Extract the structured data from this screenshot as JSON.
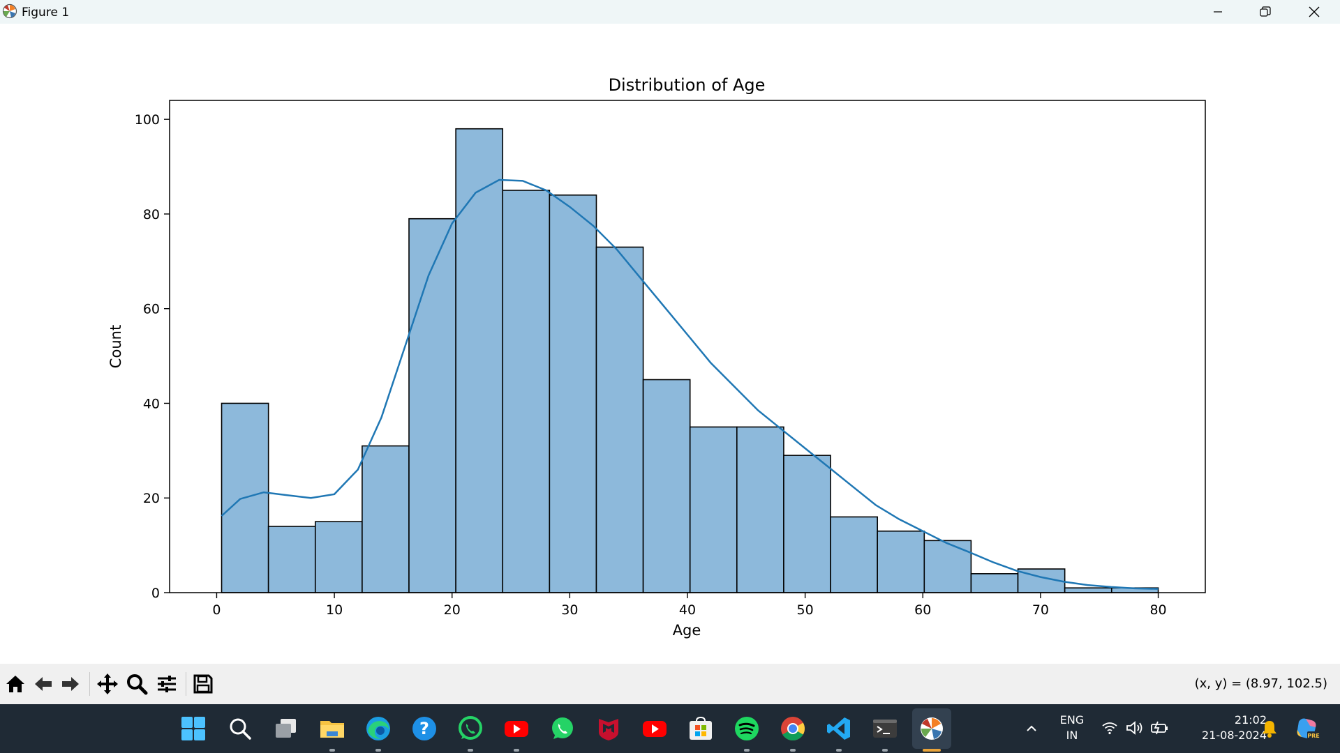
{
  "window": {
    "title": "Figure 1"
  },
  "chart_data": {
    "type": "bar",
    "title": "Distribution of Age",
    "xlabel": "Age",
    "ylabel": "Count",
    "xlim": [
      -4,
      84
    ],
    "ylim": [
      0,
      104
    ],
    "xticks": [
      0,
      10,
      20,
      30,
      40,
      50,
      60,
      70,
      80
    ],
    "yticks": [
      0,
      20,
      40,
      60,
      80,
      100
    ],
    "bin_edges": [
      0.42,
      4.4,
      8.38,
      12.36,
      16.34,
      20.32,
      24.3,
      28.28,
      32.26,
      36.24,
      40.22,
      44.2,
      48.18,
      52.16,
      56.14,
      60.12,
      64.1,
      68.08,
      72.06,
      76.04,
      80.0
    ],
    "values": [
      40,
      14,
      15,
      31,
      79,
      98,
      85,
      84,
      73,
      45,
      35,
      35,
      29,
      16,
      13,
      11,
      4,
      5,
      1,
      1
    ],
    "bar_color": "#8db9db",
    "kde": {
      "x": [
        0.42,
        2,
        4,
        6,
        8,
        10,
        12,
        14,
        16,
        18,
        20,
        22,
        24,
        26,
        28,
        30,
        32,
        34,
        36,
        38,
        40,
        42,
        44,
        46,
        48,
        50,
        52,
        54,
        56,
        58,
        60,
        62,
        64,
        66,
        68,
        70,
        72,
        74,
        76,
        78,
        80
      ],
      "y": [
        16.2,
        19.8,
        21.2,
        20.6,
        20.0,
        20.8,
        26.0,
        37.0,
        52.0,
        67.0,
        78.0,
        84.5,
        87.2,
        87.0,
        85.0,
        81.5,
        77.5,
        72.5,
        66.5,
        60.5,
        54.5,
        48.5,
        43.5,
        38.5,
        34.5,
        30.5,
        26.5,
        22.5,
        18.5,
        15.5,
        13.0,
        10.5,
        8.5,
        6.4,
        4.6,
        3.3,
        2.3,
        1.6,
        1.2,
        0.9,
        0.8
      ],
      "color": "#1f77b4"
    },
    "grid": false
  },
  "toolbar": {
    "buttons": [
      "home-icon",
      "back-icon",
      "forward-icon",
      "pan-icon",
      "zoom-icon",
      "configure-subplots-icon",
      "save-icon"
    ],
    "coords": "(x, y) = (8.97, 102.5)"
  },
  "taskbar": {
    "apps": [
      "start-icon",
      "search-icon",
      "task-view-icon",
      "file-explorer-icon",
      "edge-icon",
      "help-icon",
      "whatsapp-icon",
      "youtube-icon",
      "whatsapp-web-icon",
      "mcafee-icon",
      "youtube-app-icon",
      "microsoft-store-icon",
      "spotify-icon",
      "chrome-icon",
      "vscode-icon",
      "terminal-icon",
      "matplotlib-figure-icon"
    ],
    "lang_line1": "ENG",
    "lang_line2": "IN",
    "time": "21:02",
    "date": "21-08-2024"
  }
}
